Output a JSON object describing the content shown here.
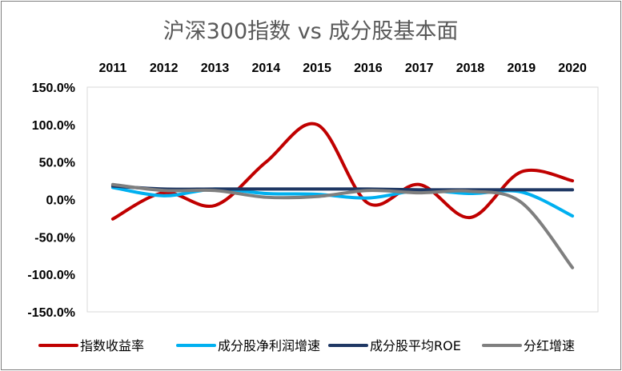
{
  "chart_data": {
    "type": "line",
    "title": "沪深300指数 vs 成分股基本面",
    "x": [
      "2011",
      "2012",
      "2013",
      "2014",
      "2015",
      "2016",
      "2017",
      "2018",
      "2019",
      "2020"
    ],
    "xlabel": "",
    "ylabel": "",
    "ylim": [
      -150,
      150
    ],
    "ytick_values": [
      150,
      100,
      50,
      0,
      -50,
      -100,
      -150
    ],
    "ytick_labels": [
      "150.0%",
      "100.0%",
      "50.0%",
      "0.0%",
      "-50.0%",
      "-100.0%",
      "-150.0%"
    ],
    "x_axis_position": "top",
    "grid": false,
    "legend_position": "bottom",
    "series": [
      {
        "name": "指数收益率",
        "color": "#c00000",
        "values": [
          -26,
          9,
          -8,
          50,
          100,
          -5,
          20,
          -24,
          37,
          25
        ]
      },
      {
        "name": "成分股净利润增速",
        "color": "#00b0f0",
        "values": [
          16,
          5,
          14,
          8,
          7,
          2,
          12,
          8,
          10,
          -22
        ]
      },
      {
        "name": "成分股平均ROE",
        "color": "#1f3864",
        "values": [
          18,
          14,
          14,
          14,
          14,
          14,
          13,
          13,
          13,
          13
        ]
      },
      {
        "name": "分红增速",
        "color": "#7f7f7f",
        "values": [
          20,
          12,
          12,
          3,
          4,
          12,
          9,
          11,
          -4,
          -91
        ]
      }
    ]
  }
}
